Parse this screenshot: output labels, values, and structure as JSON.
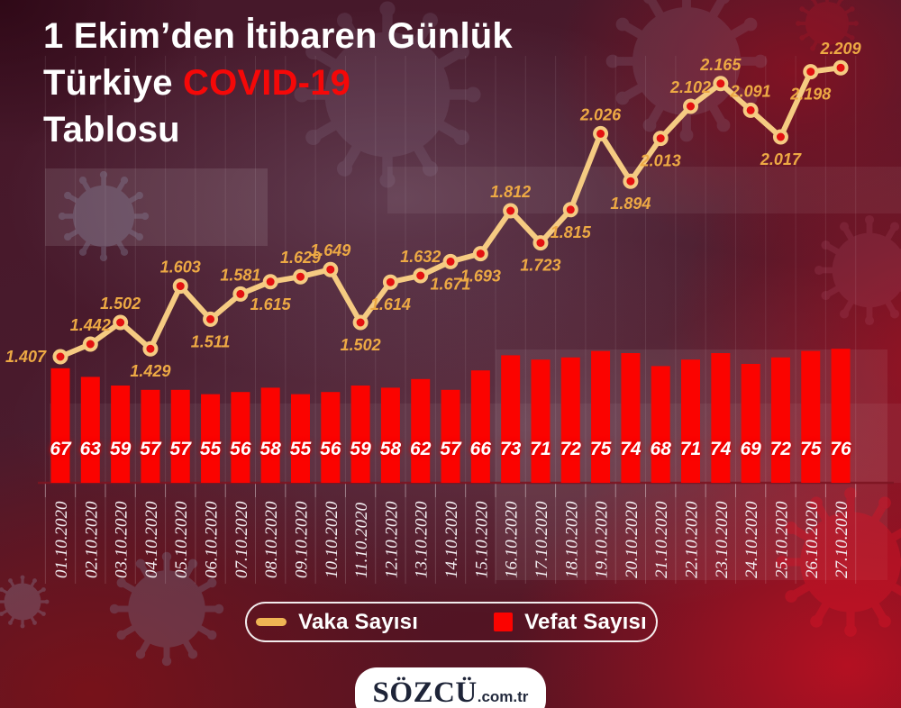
{
  "title": {
    "line1": "1 Ekim’den İtibaren Günlük",
    "line2_prefix": "Türkiye ",
    "line2_highlight": "COVID-19",
    "line3": "Tablosu",
    "highlight_color": "#f50808"
  },
  "legend": {
    "cases_label": "Vaka Sayısı",
    "deaths_label": "Vefat Sayısı"
  },
  "footer": {
    "brand": "SÖZCÜ",
    "brand_suffix": ".com.tr"
  },
  "colors": {
    "line": "#f5cb82",
    "marker_fill": "#e31111",
    "case_label": "#eda944",
    "bar": "#fb0300",
    "death_label": "#ffffff",
    "date_label": "#f3eff2",
    "axis": "#7d1522",
    "title_text": "#ffffff",
    "background_base": "#4a1b2d"
  },
  "chart_data": {
    "type": "combo-line-bar",
    "title": "1 Ekim’den İtibaren Günlük Türkiye COVID-19 Tablosu",
    "categories": [
      "01.10.2020",
      "02.10.2020",
      "03.10.2020",
      "04.10.2020",
      "05.10.2020",
      "06.10.2020",
      "07.10.2020",
      "08.10.2020",
      "09.10.2020",
      "10.10.2020",
      "11.10.2020",
      "12.10.2020",
      "13.10.2020",
      "14.10.2020",
      "15.10.2020",
      "16.10.2020",
      "17.10.2020",
      "18.10.2020",
      "19.10.2020",
      "20.10.2020",
      "21.10.2020",
      "22.10.2020",
      "23.10.2020",
      "24.10.2020",
      "25.10.2020",
      "26.10.2020",
      "27.10.2020"
    ],
    "legend_position": "bottom",
    "grid": "faint-vertical",
    "series": [
      {
        "name": "Vaka Sayısı",
        "type": "line",
        "color": "#f5cb82",
        "values": [
          1407,
          1442,
          1502,
          1429,
          1603,
          1511,
          1581,
          1615,
          1629,
          1649,
          1502,
          1614,
          1632,
          1671,
          1693,
          1812,
          1723,
          1815,
          2026,
          1894,
          2013,
          2102,
          2165,
          2091,
          2017,
          2198,
          2209
        ],
        "labels": [
          "1.407",
          "1.442",
          "1.502",
          "1.429",
          "1.603",
          "1.511",
          "1.581",
          "1.615",
          "1.629",
          "1.649",
          "1.502",
          "1.614",
          "1.632",
          "1.671",
          "1.693",
          "1.812",
          "1.723",
          "1.815",
          "2.026",
          "1.894",
          "2.013",
          "2.102",
          "2.165",
          "2.091",
          "2.017",
          "2.198",
          "2.209"
        ],
        "label_side": [
          "left",
          "above",
          "above",
          "below",
          "above",
          "below",
          "above",
          "below",
          "above",
          "above",
          "below",
          "below",
          "above",
          "below",
          "below",
          "above",
          "below",
          "below",
          "above",
          "below",
          "below",
          "above",
          "above",
          "above",
          "below",
          "below",
          "above"
        ]
      },
      {
        "name": "Vefat Sayısı",
        "type": "bar",
        "color": "#fb0300",
        "values": [
          67,
          63,
          59,
          57,
          57,
          55,
          56,
          58,
          55,
          56,
          59,
          58,
          62,
          57,
          66,
          73,
          71,
          72,
          75,
          74,
          68,
          71,
          74,
          69,
          72,
          75,
          76
        ]
      }
    ]
  }
}
